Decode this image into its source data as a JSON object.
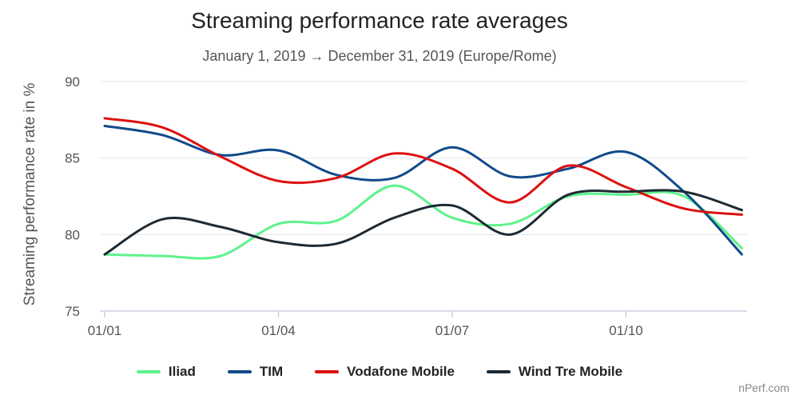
{
  "chart_data": {
    "type": "line",
    "title": "Streaming performance rate averages",
    "subtitle": "January 1, 2019 → December 31, 2019 (Europe/Rome)",
    "ylabel": "Streaming performance rate in %",
    "ylim": [
      75,
      90
    ],
    "yticks": [
      75,
      80,
      85,
      90
    ],
    "xticks": [
      "01/01",
      "01/04",
      "01/07",
      "01/10"
    ],
    "x": [
      "2019-01",
      "2019-02",
      "2019-03",
      "2019-04",
      "2019-05",
      "2019-06",
      "2019-07",
      "2019-08",
      "2019-09",
      "2019-10",
      "2019-11",
      "2019-12"
    ],
    "grid": true,
    "legend_position": "bottom",
    "series": [
      {
        "name": "Iliad",
        "color": "#5ef28c",
        "values": [
          78.7,
          78.6,
          78.6,
          80.7,
          80.9,
          83.2,
          81.1,
          80.7,
          82.5,
          82.6,
          82.5,
          79.1
        ]
      },
      {
        "name": "TIM",
        "color": "#104a8a",
        "values": [
          87.1,
          86.5,
          85.2,
          85.5,
          83.9,
          83.7,
          85.7,
          83.8,
          84.3,
          85.4,
          82.8,
          78.7
        ]
      },
      {
        "name": "Vodafone Mobile",
        "color": "#dd1111",
        "values": [
          87.6,
          87.0,
          85.1,
          83.5,
          83.7,
          85.3,
          84.3,
          82.1,
          84.5,
          83.1,
          81.7,
          81.3
        ]
      },
      {
        "name": "Wind Tre Mobile",
        "color": "#1e2a33",
        "values": [
          78.7,
          81.0,
          80.5,
          79.5,
          79.4,
          81.1,
          81.9,
          80.0,
          82.6,
          82.8,
          82.8,
          81.6
        ]
      }
    ]
  },
  "credit": "nPerf.com"
}
